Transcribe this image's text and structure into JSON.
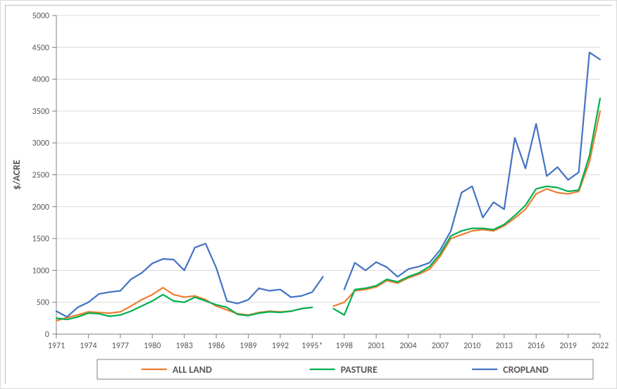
{
  "chart": {
    "type": "line",
    "ylabel": "$/ACRE",
    "label_fontsize": 14,
    "label_fontweight": "bold",
    "tick_fontsize": 12,
    "background_color": "#ffffff",
    "plot_border_color": "#bfbfbf",
    "grid_color": "#d9d9d9",
    "axis_color": "#808080",
    "ylim": [
      0,
      5000
    ],
    "ytick_step": 500,
    "yticks": [
      0,
      500,
      1000,
      1500,
      2000,
      2500,
      3000,
      3500,
      4000,
      4500,
      5000
    ],
    "categories": [
      "1971",
      "1972",
      "1973",
      "1974",
      "1975",
      "1976",
      "1977",
      "1978",
      "1979",
      "1980",
      "1981",
      "1982",
      "1983",
      "1984",
      "1985",
      "1986",
      "1987",
      "1988",
      "1989",
      "1990",
      "1991",
      "1992",
      "1993",
      "1994",
      "1995*",
      "1996",
      "1997",
      "1998",
      "1999",
      "2000",
      "2001",
      "2002",
      "2003",
      "2004",
      "2005",
      "2006",
      "2007",
      "2008",
      "2009",
      "2010",
      "2011",
      "2012",
      "2013",
      "2014",
      "2015",
      "2016",
      "2017",
      "2018",
      "2019",
      "2020",
      "2021",
      "2022"
    ],
    "xtick_interval": 3,
    "line_width": 2.2,
    "series": [
      {
        "name": "ALL LAND",
        "color": "#ed7d31",
        "values": [
          210,
          260,
          300,
          350,
          340,
          330,
          350,
          440,
          540,
          620,
          730,
          620,
          580,
          600,
          540,
          440,
          380,
          320,
          300,
          340,
          360,
          350,
          360,
          400,
          420,
          null,
          440,
          500,
          680,
          700,
          740,
          840,
          800,
          880,
          940,
          1020,
          1220,
          1500,
          1560,
          1620,
          1640,
          1620,
          1700,
          1820,
          1960,
          2200,
          2280,
          2220,
          2200,
          2240,
          2700,
          3500
        ]
      },
      {
        "name": "PASTURE",
        "color": "#00b050",
        "values": [
          250,
          230,
          270,
          330,
          320,
          280,
          300,
          360,
          440,
          520,
          620,
          520,
          500,
          580,
          520,
          460,
          420,
          310,
          290,
          330,
          350,
          340,
          360,
          400,
          420,
          null,
          400,
          300,
          700,
          720,
          760,
          860,
          820,
          900,
          960,
          1060,
          1260,
          1540,
          1620,
          1660,
          1660,
          1640,
          1720,
          1860,
          2020,
          2280,
          2320,
          2300,
          2240,
          2260,
          2800,
          3700
        ]
      },
      {
        "name": "CROPLAND",
        "color": "#4472c4",
        "values": [
          360,
          270,
          420,
          500,
          630,
          660,
          680,
          860,
          960,
          1110,
          1180,
          1170,
          1000,
          1360,
          1420,
          1040,
          520,
          480,
          540,
          720,
          680,
          700,
          580,
          600,
          660,
          900,
          null,
          700,
          1120,
          1000,
          1130,
          1050,
          900,
          1020,
          1060,
          1120,
          1320,
          1620,
          2220,
          2320,
          1830,
          2070,
          1960,
          3080,
          2600,
          3300,
          2480,
          2620,
          2420,
          2540,
          4420,
          4310
        ]
      }
    ],
    "legend": {
      "border_color": "#808080",
      "text_color": "#595959",
      "fontsize": 14,
      "fontweight": "bold",
      "line_length": 36
    }
  }
}
